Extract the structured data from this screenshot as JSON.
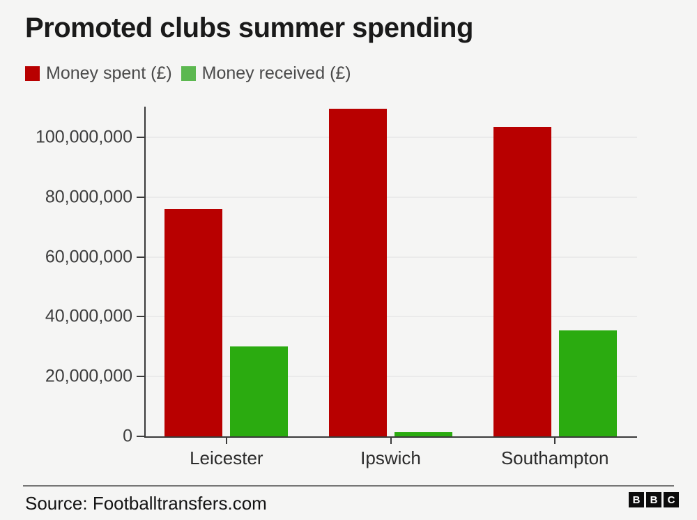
{
  "title": "Promoted clubs summer spending",
  "legend": [
    {
      "label": "Money spent (£)",
      "swatch_color": "#b80000"
    },
    {
      "label": "Money received (£)",
      "swatch_color": "#5cb850"
    }
  ],
  "chart_data": {
    "type": "bar",
    "title": "Promoted clubs summer spending",
    "categories": [
      "Leicester",
      "Ipswich",
      "Southampton"
    ],
    "series": [
      {
        "name": "Money spent (£)",
        "color": "#b80000",
        "values": [
          76000000,
          109500000,
          103500000
        ]
      },
      {
        "name": "Money received (£)",
        "color": "#2bab10",
        "values": [
          30000000,
          1500000,
          35500000
        ]
      }
    ],
    "xlabel": "",
    "ylabel": "",
    "yticks": [
      0,
      20000000,
      40000000,
      60000000,
      80000000,
      100000000
    ],
    "ytick_labels": [
      "0",
      "20,000,000",
      "40,000,000",
      "60,000,000",
      "80,000,000",
      "100,000,000"
    ],
    "ylim": [
      0,
      110300000
    ],
    "grid": "horizontal",
    "legend_position": "top-left"
  },
  "footer": {
    "source": "Source: Footballtransfers.com",
    "logo": [
      "B",
      "B",
      "C"
    ]
  },
  "colors": {
    "background": "#f5f5f4",
    "bar_spent": "#b80000",
    "bar_received": "#2bab10",
    "axis": "#3a3a3a",
    "gridline": "#eaeaea",
    "title_text": "#1a1a1a",
    "legend_text": "#4a4a4a",
    "axis_text": "#3d3d3d",
    "divider": "#767676"
  }
}
